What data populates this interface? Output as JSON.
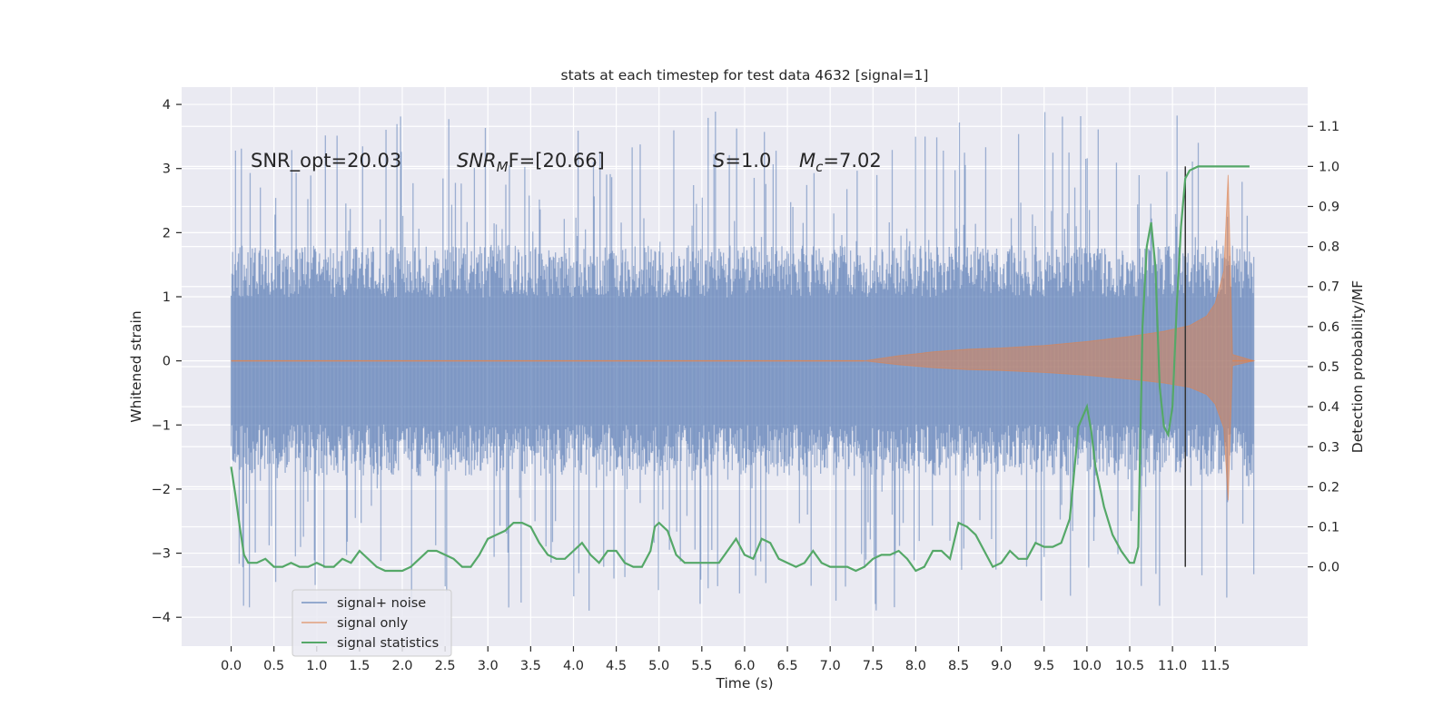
{
  "chart_data": {
    "type": "line",
    "title": "stats at each timestep for test data 4632 [signal=1]",
    "xlabel": "Time (s)",
    "ylabel_left": "Whitened strain",
    "ylabel_right": "Detection probability/MF",
    "xlim": [
      -0.5787,
      12.58
    ],
    "ylim_left": [
      -4.45,
      4.27
    ],
    "ylim_right": [
      -0.198,
      1.198
    ],
    "x_ticks": [
      "0.0",
      "0.5",
      "1.0",
      "1.5",
      "2.0",
      "2.5",
      "3.0",
      "3.5",
      "4.0",
      "4.5",
      "5.0",
      "5.5",
      "6.0",
      "6.5",
      "7.0",
      "7.5",
      "8.0",
      "8.5",
      "9.0",
      "9.5",
      "10.0",
      "10.5",
      "11.0",
      "11.5"
    ],
    "y_ticks_left": [
      "−4",
      "−3",
      "−2",
      "−1",
      "0",
      "1",
      "2",
      "3",
      "4"
    ],
    "y_ticks_right": [
      "0.0",
      "0.1",
      "0.2",
      "0.3",
      "0.4",
      "0.5",
      "0.6",
      "0.7",
      "0.8",
      "0.9",
      "1.0",
      "1.1"
    ],
    "grid": true,
    "legend_position": "lower-left",
    "colors": {
      "background": "#eaeaf2",
      "grid": "#ffffff",
      "signal_noise": "#4c72b0",
      "signal_only": "#dd8452",
      "signal_statistics": "#55a868",
      "marker_line": "#333333"
    },
    "annotations": {
      "snr_opt": "SNR_opt=20.03",
      "snr_mf_main": "SNR",
      "snr_mf_sub": "M",
      "snr_mf_rest": "F=[20.66]",
      "s_italic": "S",
      "s_rest": "=1.0",
      "mc_main": "M",
      "mc_sub": "c",
      "mc_rest": "=7.02"
    },
    "series": [
      {
        "name": "signal+ noise",
        "axis": "left",
        "style": "dense-noise",
        "x_range": [
          0.0,
          11.95
        ],
        "typical_envelope": 1.8,
        "max_abs": 3.9
      },
      {
        "name": "signal only",
        "axis": "left",
        "style": "chirp-envelope",
        "x": [
          7.4,
          7.8,
          8.2,
          8.6,
          9.0,
          9.5,
          10.0,
          10.5,
          10.9,
          11.2,
          11.4,
          11.5,
          11.6,
          11.65,
          11.7,
          11.95
        ],
        "envelope": [
          0.0,
          0.08,
          0.14,
          0.18,
          0.2,
          0.24,
          0.3,
          0.38,
          0.46,
          0.55,
          0.7,
          0.9,
          1.4,
          2.9,
          0.1,
          0.0
        ]
      },
      {
        "name": "signal statistics",
        "axis": "right",
        "x": [
          0.0,
          0.05,
          0.1,
          0.15,
          0.2,
          0.3,
          0.4,
          0.5,
          0.6,
          0.7,
          0.8,
          0.9,
          1.0,
          1.1,
          1.2,
          1.3,
          1.4,
          1.5,
          1.6,
          1.7,
          1.8,
          1.9,
          2.0,
          2.1,
          2.2,
          2.3,
          2.4,
          2.5,
          2.6,
          2.7,
          2.8,
          2.9,
          3.0,
          3.1,
          3.2,
          3.3,
          3.4,
          3.5,
          3.6,
          3.7,
          3.8,
          3.9,
          4.0,
          4.1,
          4.2,
          4.3,
          4.4,
          4.5,
          4.6,
          4.7,
          4.8,
          4.9,
          4.95,
          5.0,
          5.1,
          5.2,
          5.3,
          5.4,
          5.5,
          5.6,
          5.7,
          5.8,
          5.9,
          6.0,
          6.1,
          6.2,
          6.3,
          6.4,
          6.5,
          6.6,
          6.7,
          6.8,
          6.9,
          7.0,
          7.1,
          7.2,
          7.3,
          7.4,
          7.5,
          7.6,
          7.7,
          7.8,
          7.9,
          8.0,
          8.1,
          8.2,
          8.3,
          8.4,
          8.5,
          8.6,
          8.7,
          8.8,
          8.9,
          9.0,
          9.1,
          9.2,
          9.3,
          9.4,
          9.5,
          9.6,
          9.7,
          9.8,
          9.9,
          10.0,
          10.05,
          10.1,
          10.2,
          10.3,
          10.4,
          10.5,
          10.55,
          10.6,
          10.65,
          10.7,
          10.75,
          10.8,
          10.85,
          10.9,
          10.95,
          11.0,
          11.05,
          11.1,
          11.15,
          11.2,
          11.3,
          11.5,
          11.9
        ],
        "values": [
          0.25,
          0.18,
          0.1,
          0.03,
          0.01,
          0.01,
          0.02,
          0.0,
          0.0,
          0.01,
          0.0,
          0.0,
          0.01,
          0.0,
          0.0,
          0.02,
          0.01,
          0.04,
          0.02,
          0.0,
          -0.01,
          -0.01,
          -0.01,
          0.0,
          0.02,
          0.04,
          0.04,
          0.03,
          0.02,
          0.0,
          0.0,
          0.03,
          0.07,
          0.08,
          0.09,
          0.11,
          0.11,
          0.1,
          0.06,
          0.03,
          0.02,
          0.02,
          0.04,
          0.06,
          0.03,
          0.01,
          0.04,
          0.04,
          0.01,
          0.0,
          0.0,
          0.04,
          0.1,
          0.11,
          0.09,
          0.03,
          0.01,
          0.01,
          0.01,
          0.01,
          0.01,
          0.04,
          0.07,
          0.03,
          0.02,
          0.07,
          0.06,
          0.02,
          0.01,
          0.0,
          0.01,
          0.04,
          0.01,
          0.0,
          0.0,
          0.0,
          -0.01,
          0.0,
          0.02,
          0.03,
          0.03,
          0.04,
          0.02,
          -0.01,
          0.0,
          0.04,
          0.04,
          0.02,
          0.11,
          0.1,
          0.08,
          0.04,
          0.0,
          0.01,
          0.04,
          0.02,
          0.02,
          0.06,
          0.05,
          0.05,
          0.06,
          0.12,
          0.35,
          0.4,
          0.34,
          0.25,
          0.15,
          0.08,
          0.04,
          0.01,
          0.01,
          0.05,
          0.6,
          0.8,
          0.86,
          0.75,
          0.45,
          0.35,
          0.33,
          0.4,
          0.65,
          0.85,
          0.97,
          0.99,
          1.0,
          1.0,
          1.0
        ]
      }
    ],
    "vertical_marker_x": 11.15,
    "legend": [
      "signal+ noise",
      "signal only",
      "signal statistics"
    ]
  }
}
